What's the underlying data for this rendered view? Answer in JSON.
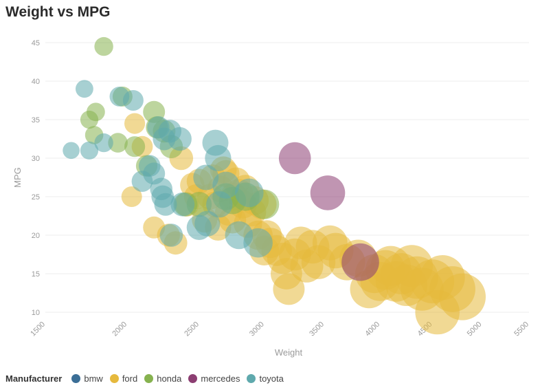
{
  "chart_data": {
    "type": "scatter",
    "title": "Weight vs MPG",
    "xlabel": "Weight",
    "ylabel": "MPG",
    "xlim": [
      1500,
      5500
    ],
    "ylim": [
      10,
      45
    ],
    "x_scale": "sqrt",
    "x_ticks": [
      1500,
      2000,
      2500,
      3000,
      3500,
      4000,
      4500,
      5000,
      5500
    ],
    "y_ticks": [
      10,
      15,
      20,
      25,
      30,
      35,
      40,
      45
    ],
    "legend": {
      "title": "Manufacturer",
      "position": "bottom-left"
    },
    "colors": {
      "bmw": "#3b6e96",
      "ford": "#e6b93d",
      "honda": "#86b24f",
      "mercedes": "#8c3e72",
      "toyota": "#5fa9ad"
    },
    "series": [
      {
        "name": "bmw",
        "points": []
      },
      {
        "name": "ford",
        "points": [
          [
            2050,
            34.5
          ],
          [
            2100,
            31.5
          ],
          [
            2030,
            25
          ],
          [
            2180,
            21
          ],
          [
            2280,
            20
          ],
          [
            2330,
            19
          ],
          [
            2410,
            24
          ],
          [
            2450,
            26.5
          ],
          [
            2480,
            25
          ],
          [
            2500,
            27
          ],
          [
            2540,
            22
          ],
          [
            2580,
            25
          ],
          [
            2600,
            27.5
          ],
          [
            2620,
            24
          ],
          [
            2640,
            21
          ],
          [
            2660,
            26
          ],
          [
            2700,
            28
          ],
          [
            2720,
            23
          ],
          [
            2750,
            22
          ],
          [
            2780,
            27
          ],
          [
            2800,
            25.5
          ],
          [
            2830,
            24
          ],
          [
            2850,
            26
          ],
          [
            2870,
            21.5
          ],
          [
            2900,
            23
          ],
          [
            2920,
            24.5
          ],
          [
            2950,
            20
          ],
          [
            2980,
            24
          ],
          [
            3000,
            18
          ],
          [
            3020,
            20
          ],
          [
            3050,
            19
          ],
          [
            3100,
            18
          ],
          [
            3150,
            17
          ],
          [
            3180,
            15
          ],
          [
            3200,
            13
          ],
          [
            3250,
            17.5
          ],
          [
            3300,
            19
          ],
          [
            3350,
            16
          ],
          [
            3400,
            18.5
          ],
          [
            3450,
            16.5
          ],
          [
            3550,
            19
          ],
          [
            3600,
            18
          ],
          [
            3700,
            16.5
          ],
          [
            3800,
            17
          ],
          [
            3900,
            13
          ],
          [
            3950,
            15
          ],
          [
            4000,
            14
          ],
          [
            4050,
            15.5
          ],
          [
            4100,
            16
          ],
          [
            4150,
            14
          ],
          [
            4200,
            15
          ],
          [
            4250,
            13.5
          ],
          [
            4300,
            16
          ],
          [
            4350,
            14.5
          ],
          [
            4400,
            13
          ],
          [
            4500,
            14
          ],
          [
            4550,
            10
          ],
          [
            4600,
            14.5
          ],
          [
            4700,
            13
          ],
          [
            4800,
            12
          ],
          [
            2370,
            30
          ],
          [
            2680,
            28.5
          ],
          [
            2760,
            25
          ]
        ]
      },
      {
        "name": "honda",
        "points": [
          [
            1850,
            44.5
          ],
          [
            1760,
            35
          ],
          [
            1800,
            36
          ],
          [
            1790,
            33
          ],
          [
            1940,
            32
          ],
          [
            2050,
            31.5
          ],
          [
            1970,
            38
          ],
          [
            2180,
            36
          ],
          [
            2200,
            34
          ],
          [
            2250,
            33.5
          ],
          [
            2130,
            29
          ],
          [
            2300,
            31.5
          ],
          [
            2400,
            24
          ],
          [
            2500,
            24
          ],
          [
            2700,
            25
          ],
          [
            2750,
            24.5
          ],
          [
            2850,
            25
          ],
          [
            3000,
            24
          ]
        ]
      },
      {
        "name": "mercedes",
        "points": [
          [
            3250,
            30
          ],
          [
            3530,
            25.5
          ],
          [
            3820,
            16.5
          ]
        ]
      },
      {
        "name": "toyota",
        "points": [
          [
            1650,
            31
          ],
          [
            1730,
            39
          ],
          [
            1760,
            31
          ],
          [
            1850,
            32
          ],
          [
            1950,
            38
          ],
          [
            2040,
            37.5
          ],
          [
            2210,
            34
          ],
          [
            2250,
            32.5
          ],
          [
            2290,
            33.5
          ],
          [
            2360,
            32.5
          ],
          [
            2100,
            27
          ],
          [
            2150,
            29
          ],
          [
            2180,
            28
          ],
          [
            2230,
            26
          ],
          [
            2240,
            25
          ],
          [
            2260,
            24
          ],
          [
            2300,
            20
          ],
          [
            2380,
            24
          ],
          [
            2500,
            21
          ],
          [
            2550,
            27.5
          ],
          [
            2620,
            32
          ],
          [
            2640,
            30
          ],
          [
            2650,
            24
          ],
          [
            2700,
            26.5
          ],
          [
            2800,
            20
          ],
          [
            2880,
            25.5
          ],
          [
            2950,
            19
          ],
          [
            2560,
            21.5
          ]
        ]
      }
    ]
  }
}
